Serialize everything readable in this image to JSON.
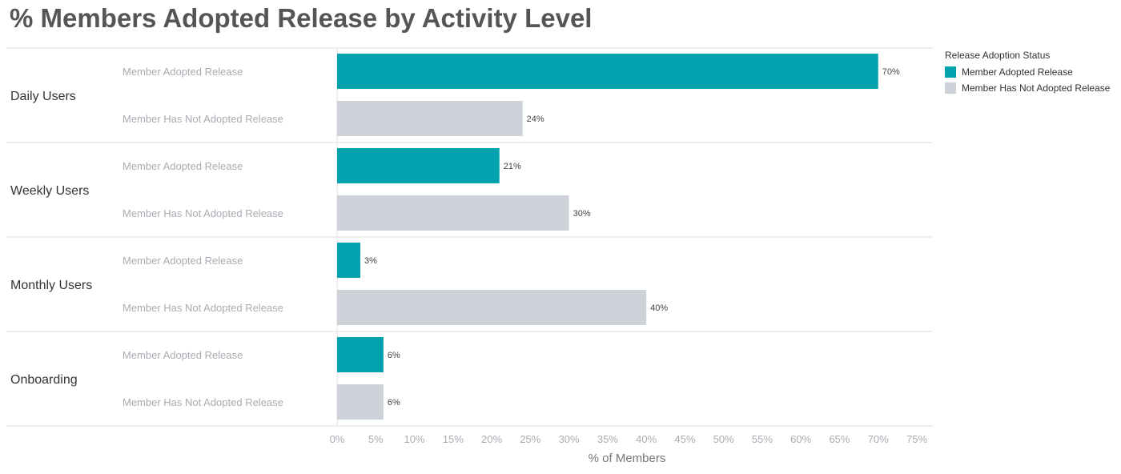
{
  "title": "% Members Adopted Release by Activity Level",
  "legend": {
    "title": "Release Adoption Status",
    "items": [
      {
        "label": "Member Adopted Release",
        "color": "#00a2ad"
      },
      {
        "label": "Member Has Not Adopted Release",
        "color": "#cdd2d9"
      }
    ]
  },
  "chart_data": {
    "type": "bar",
    "orientation": "horizontal",
    "xlabel": "% of Members",
    "xlim": [
      0,
      75
    ],
    "xticks": [
      "0%",
      "5%",
      "10%",
      "15%",
      "20%",
      "25%",
      "30%",
      "35%",
      "40%",
      "45%",
      "50%",
      "55%",
      "60%",
      "65%",
      "70%",
      "75%"
    ],
    "groups": [
      "Daily Users",
      "Weekly Users",
      "Monthly Users",
      "Onboarding"
    ],
    "subcategories": [
      "Member Adopted Release",
      "Member Has Not Adopted Release"
    ],
    "series": [
      {
        "name": "Member Adopted Release",
        "color": "#00a2ad",
        "values": [
          70,
          21,
          3,
          6
        ],
        "labels": [
          "70%",
          "21%",
          "3%",
          "6%"
        ]
      },
      {
        "name": "Member Has Not Adopted Release",
        "color": "#cdd2d9",
        "values": [
          24,
          30,
          40,
          6
        ],
        "labels": [
          "24%",
          "30%",
          "40%",
          "6%"
        ]
      }
    ],
    "grid": false,
    "legend_position": "top-right"
  }
}
